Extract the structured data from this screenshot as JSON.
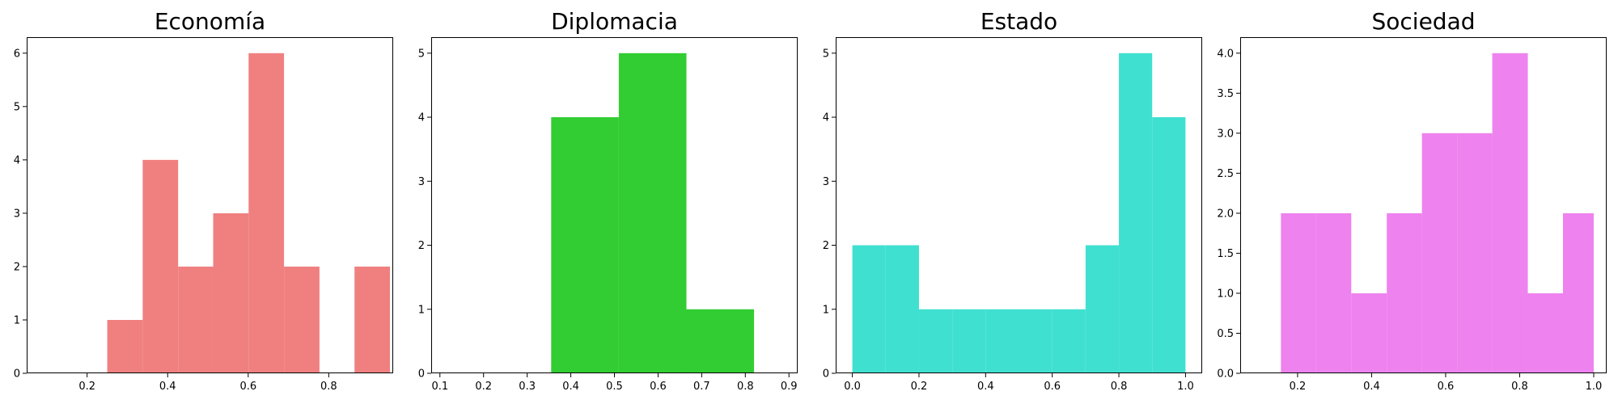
{
  "chart_data": [
    {
      "type": "bar",
      "title": "Economía",
      "color": "#f08080",
      "xlabel": "",
      "ylabel": "",
      "xlim": [
        0.05,
        0.96
      ],
      "ylim": [
        0,
        6.3
      ],
      "xticks": [
        0.2,
        0.4,
        0.6,
        0.8
      ],
      "xtick_labels": [
        "0.2",
        "0.4",
        "0.6",
        "0.8"
      ],
      "yticks": [
        0,
        1,
        2,
        3,
        4,
        5,
        6
      ],
      "ytick_labels": [
        "0",
        "1",
        "2",
        "3",
        "4",
        "5",
        "6"
      ],
      "bins": [
        {
          "x0": 0.25,
          "x1": 0.338,
          "count": 1
        },
        {
          "x0": 0.338,
          "x1": 0.426,
          "count": 4
        },
        {
          "x0": 0.426,
          "x1": 0.513,
          "count": 2
        },
        {
          "x0": 0.513,
          "x1": 0.601,
          "count": 3
        },
        {
          "x0": 0.601,
          "x1": 0.689,
          "count": 6
        },
        {
          "x0": 0.689,
          "x1": 0.777,
          "count": 2
        },
        {
          "x0": 0.777,
          "x1": 0.864,
          "count": 0
        },
        {
          "x0": 0.864,
          "x1": 0.952,
          "count": 2
        }
      ]
    },
    {
      "type": "bar",
      "title": "Diplomacia",
      "color": "#32cd32",
      "xlabel": "",
      "ylabel": "",
      "xlim": [
        0.08,
        0.92
      ],
      "ylim": [
        0,
        5.25
      ],
      "xticks": [
        0.1,
        0.2,
        0.3,
        0.4,
        0.5,
        0.6,
        0.7,
        0.8,
        0.9
      ],
      "xtick_labels": [
        "0.1",
        "0.2",
        "0.3",
        "0.4",
        "0.5",
        "0.6",
        "0.7",
        "0.8",
        "0.9"
      ],
      "yticks": [
        0,
        1,
        2,
        3,
        4,
        5
      ],
      "ytick_labels": [
        "0",
        "1",
        "2",
        "3",
        "4",
        "5"
      ],
      "bins": [
        {
          "x0": 0.355,
          "x1": 0.51,
          "count": 4
        },
        {
          "x0": 0.51,
          "x1": 0.665,
          "count": 5
        },
        {
          "x0": 0.665,
          "x1": 0.82,
          "count": 1
        }
      ]
    },
    {
      "type": "bar",
      "title": "Estado",
      "color": "#40e0d0",
      "xlabel": "",
      "ylabel": "",
      "xlim": [
        -0.05,
        1.05
      ],
      "ylim": [
        0,
        5.25
      ],
      "xticks": [
        0.0,
        0.2,
        0.4,
        0.6,
        0.8,
        1.0
      ],
      "xtick_labels": [
        "0.0",
        "0.2",
        "0.4",
        "0.6",
        "0.8",
        "1.0"
      ],
      "yticks": [
        0,
        1,
        2,
        3,
        4,
        5
      ],
      "ytick_labels": [
        "0",
        "1",
        "2",
        "3",
        "4",
        "5"
      ],
      "bins": [
        {
          "x0": 0.0,
          "x1": 0.1,
          "count": 2
        },
        {
          "x0": 0.1,
          "x1": 0.2,
          "count": 2
        },
        {
          "x0": 0.2,
          "x1": 0.3,
          "count": 1
        },
        {
          "x0": 0.3,
          "x1": 0.4,
          "count": 1
        },
        {
          "x0": 0.4,
          "x1": 0.5,
          "count": 1
        },
        {
          "x0": 0.5,
          "x1": 0.6,
          "count": 1
        },
        {
          "x0": 0.6,
          "x1": 0.7,
          "count": 1
        },
        {
          "x0": 0.7,
          "x1": 0.8,
          "count": 2
        },
        {
          "x0": 0.8,
          "x1": 0.9,
          "count": 5
        },
        {
          "x0": 0.9,
          "x1": 1.0,
          "count": 4
        }
      ]
    },
    {
      "type": "bar",
      "title": "Sociedad",
      "color": "#ee82ee",
      "xlabel": "",
      "ylabel": "",
      "xlim": [
        0.045,
        1.035
      ],
      "ylim": [
        0,
        4.2
      ],
      "xticks": [
        0.2,
        0.4,
        0.6,
        0.8,
        1.0
      ],
      "xtick_labels": [
        "0.2",
        "0.4",
        "0.6",
        "0.8",
        "1.0"
      ],
      "yticks": [
        0,
        0.5,
        1,
        1.5,
        2,
        2.5,
        3,
        3.5,
        4
      ],
      "ytick_labels": [
        "0.0",
        "0.5",
        "1.0",
        "1.5",
        "2.0",
        "2.5",
        "3.0",
        "3.5",
        "4.0"
      ],
      "bins": [
        {
          "x0": 0.155,
          "x1": 0.25,
          "count": 2
        },
        {
          "x0": 0.25,
          "x1": 0.345,
          "count": 2
        },
        {
          "x0": 0.345,
          "x1": 0.441,
          "count": 1
        },
        {
          "x0": 0.441,
          "x1": 0.536,
          "count": 2
        },
        {
          "x0": 0.536,
          "x1": 0.631,
          "count": 3
        },
        {
          "x0": 0.631,
          "x1": 0.726,
          "count": 3
        },
        {
          "x0": 0.726,
          "x1": 0.822,
          "count": 4
        },
        {
          "x0": 0.822,
          "x1": 0.917,
          "count": 1
        },
        {
          "x0": 0.917,
          "x1": 1.0,
          "count": 2
        }
      ]
    }
  ]
}
